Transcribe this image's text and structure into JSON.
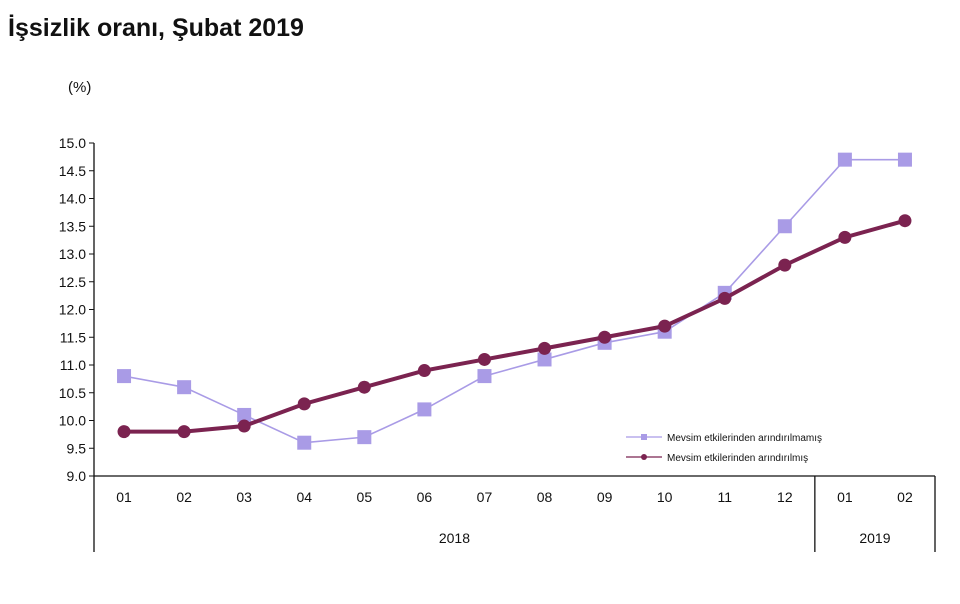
{
  "chart_data": {
    "type": "line",
    "title": "İşsizlik oranı, Şubat 2019",
    "ylabel": "(%)",
    "ylim": [
      9.0,
      15.0
    ],
    "yticks": [
      "9.0",
      "9.5",
      "10.0",
      "10.5",
      "11.0",
      "11.5",
      "12.0",
      "12.5",
      "13.0",
      "13.5",
      "14.0",
      "14.5",
      "15.0"
    ],
    "categories": [
      "01",
      "02",
      "03",
      "04",
      "05",
      "06",
      "07",
      "08",
      "09",
      "10",
      "11",
      "12",
      "01",
      "02"
    ],
    "year_groups": [
      {
        "label": "2018",
        "count": 12
      },
      {
        "label": "2019",
        "count": 2
      }
    ],
    "grid": false,
    "legend_position": "bottom-right",
    "series": [
      {
        "name": "Mevsim etkilerinden arındırılmamış",
        "color": "#a99be6",
        "marker": "square",
        "values": [
          10.8,
          10.6,
          10.1,
          9.6,
          9.7,
          10.2,
          10.8,
          11.1,
          11.4,
          11.6,
          12.3,
          13.5,
          14.7,
          14.7
        ]
      },
      {
        "name": "Mevsim etkilerinden arındırılmış",
        "color": "#7b2350",
        "marker": "circle",
        "values": [
          9.8,
          9.8,
          9.9,
          10.3,
          10.6,
          10.9,
          11.1,
          11.3,
          11.5,
          11.7,
          12.2,
          12.8,
          13.3,
          13.6
        ]
      }
    ]
  }
}
